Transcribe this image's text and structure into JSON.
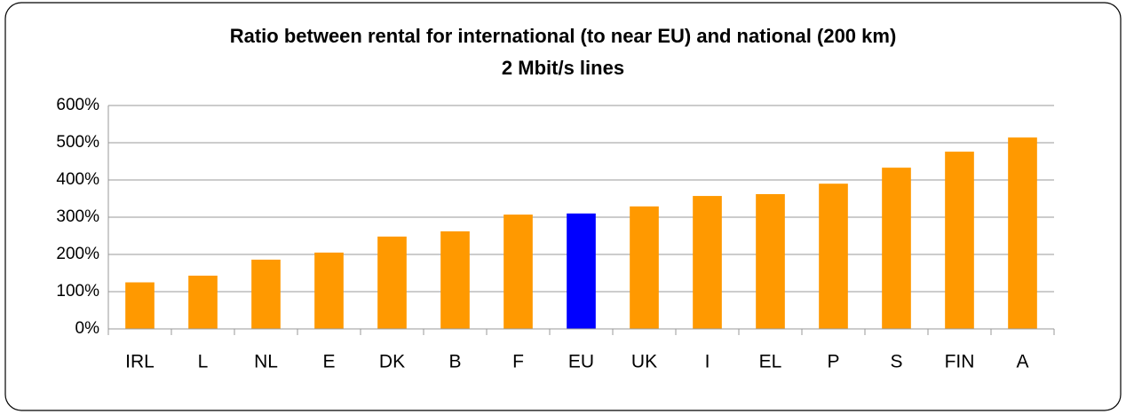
{
  "chart_data": {
    "type": "bar",
    "title": "Ratio between rental for international (to near EU) and national (200 km)",
    "subtitle": "2 Mbit/s lines",
    "categories": [
      "IRL",
      "L",
      "NL",
      "E",
      "DK",
      "B",
      "F",
      "EU",
      "UK",
      "I",
      "EL",
      "P",
      "S",
      "FIN",
      "A"
    ],
    "values": [
      125,
      143,
      186,
      205,
      248,
      262,
      307,
      310,
      329,
      357,
      362,
      390,
      433,
      476,
      514
    ],
    "colors": [
      "#ff9900",
      "#ff9900",
      "#ff9900",
      "#ff9900",
      "#ff9900",
      "#ff9900",
      "#ff9900",
      "#0000ff",
      "#ff9900",
      "#ff9900",
      "#ff9900",
      "#ff9900",
      "#ff9900",
      "#ff9900",
      "#ff9900"
    ],
    "ylim": [
      0,
      600
    ],
    "yticks": [
      {
        "value": 0,
        "label": "0%"
      },
      {
        "value": 100,
        "label": "100%"
      },
      {
        "value": 200,
        "label": "200%"
      },
      {
        "value": 300,
        "label": "300%"
      },
      {
        "value": 400,
        "label": "400%"
      },
      {
        "value": 500,
        "label": "500%"
      },
      {
        "value": 600,
        "label": "600%"
      }
    ],
    "grid": true
  }
}
